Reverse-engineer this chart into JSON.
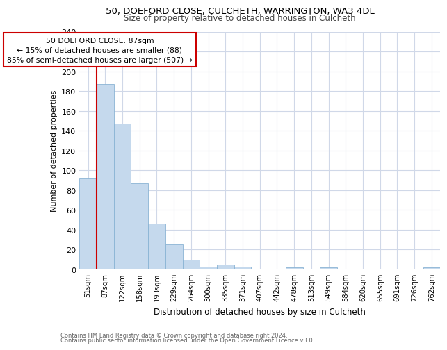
{
  "title1": "50, DOEFORD CLOSE, CULCHETH, WARRINGTON, WA3 4DL",
  "title2": "Size of property relative to detached houses in Culcheth",
  "xlabel": "Distribution of detached houses by size in Culcheth",
  "ylabel": "Number of detached properties",
  "footer1": "Contains HM Land Registry data © Crown copyright and database right 2024.",
  "footer2": "Contains public sector information licensed under the Open Government Licence v3.0.",
  "categories": [
    "51sqm",
    "87sqm",
    "122sqm",
    "158sqm",
    "193sqm",
    "229sqm",
    "264sqm",
    "300sqm",
    "335sqm",
    "371sqm",
    "407sqm",
    "442sqm",
    "478sqm",
    "513sqm",
    "549sqm",
    "584sqm",
    "620sqm",
    "655sqm",
    "691sqm",
    "726sqm",
    "762sqm"
  ],
  "values": [
    92,
    187,
    147,
    87,
    46,
    25,
    10,
    3,
    5,
    3,
    0,
    0,
    2,
    0,
    2,
    0,
    1,
    0,
    0,
    0,
    2
  ],
  "bar_color": "#c5d9ed",
  "bar_edge_color": "#8ab4d4",
  "annotation_line1": "50 DOEFORD CLOSE: 87sqm",
  "annotation_line2": "← 15% of detached houses are smaller (88)",
  "annotation_line3": "85% of semi-detached houses are larger (507) →",
  "annotation_box_color": "#cc0000",
  "red_line_x": 0.5,
  "ylim": [
    0,
    240
  ],
  "yticks": [
    0,
    20,
    40,
    60,
    80,
    100,
    120,
    140,
    160,
    180,
    200,
    220,
    240
  ],
  "bg_color": "#ffffff",
  "grid_color": "#d0d8e8"
}
